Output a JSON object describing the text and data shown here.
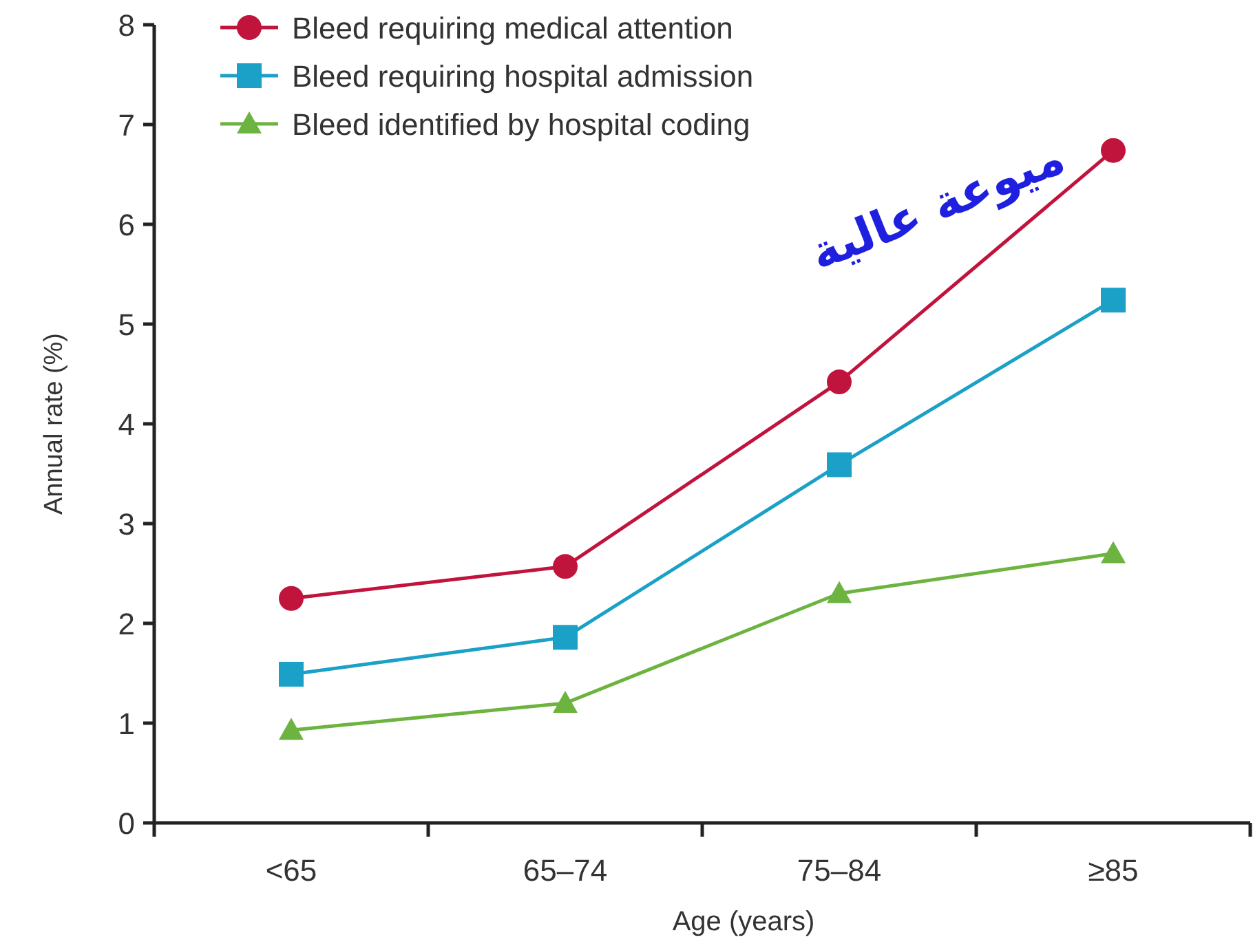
{
  "chart_data": {
    "type": "line",
    "xlabel": "Age (years)",
    "ylabel": "Annual rate (%)",
    "categories": [
      "<65",
      "65–74",
      "75–84",
      "≥85"
    ],
    "series": [
      {
        "name": "Bleed requiring medical attention",
        "color": "#c0143c",
        "marker": "circle",
        "values": [
          2.25,
          2.57,
          4.42,
          6.74
        ]
      },
      {
        "name": "Bleed requiring hospital admission",
        "color": "#1ba0c8",
        "marker": "square",
        "values": [
          1.49,
          1.86,
          3.59,
          5.24
        ]
      },
      {
        "name": "Bleed identified by hospital coding",
        "color": "#6cb33f",
        "marker": "triangle",
        "values": [
          0.93,
          1.2,
          2.3,
          2.7
        ]
      }
    ],
    "ylim": [
      0,
      8
    ],
    "yticks": [
      0,
      1,
      2,
      3,
      4,
      5,
      6,
      7,
      8
    ],
    "grid": false,
    "legend": "top left",
    "annotations": [
      "ميوعة عالية"
    ]
  }
}
